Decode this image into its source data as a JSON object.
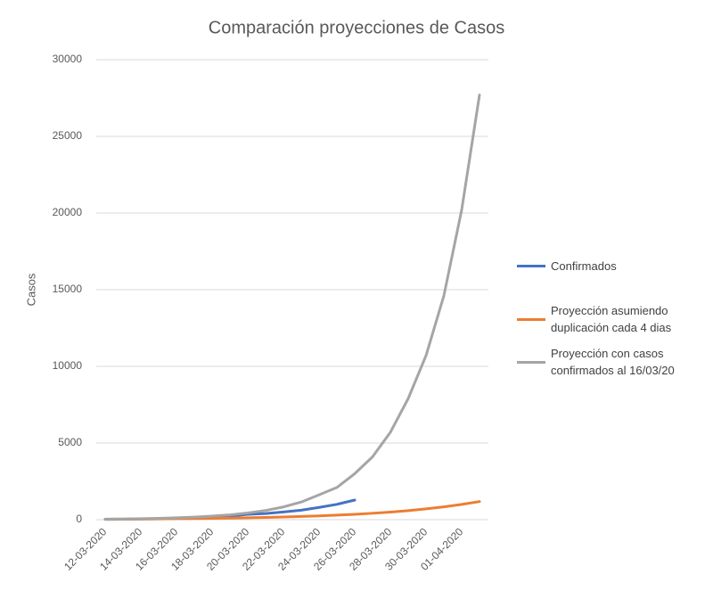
{
  "chart_data": {
    "type": "line",
    "title": "Comparación proyecciones de Casos",
    "y_label": "Casos",
    "categories": [
      "12-03-2020",
      null,
      "14-03-2020",
      null,
      "16-03-2020",
      null,
      "18-03-2020",
      null,
      "20-03-2020",
      null,
      "22-03-2020",
      null,
      "24-03-2020",
      null,
      "26-03-2020",
      null,
      "28-03-2020",
      null,
      "30-03-2020",
      null,
      "01-04-2020",
      null
    ],
    "series": [
      {
        "name": "Confirmados",
        "color": "#4472c4",
        "values": [
          20,
          30,
          40,
          60,
          100,
          150,
          200,
          230,
          350,
          400,
          500,
          620,
          800,
          1000,
          1280,
          null,
          null,
          null,
          null,
          null,
          null,
          null
        ]
      },
      {
        "name": "Proyección asumiendo duplicación cada 4 dias",
        "color": "#ed7d31",
        "values": [
          31,
          37,
          44,
          52,
          62,
          74,
          88,
          105,
          124,
          148,
          176,
          209,
          248,
          295,
          351,
          418,
          497,
          591,
          703,
          836,
          994,
          1182
        ]
      },
      {
        "name": "Proyección con casos confirmados al 16/03/20",
        "color": "#a5a5a5",
        "values": [
          33,
          46,
          63,
          87,
          120,
          165,
          230,
          315,
          435,
          600,
          830,
          1150,
          1620,
          2100,
          3000,
          4100,
          5700,
          7900,
          10700,
          14600,
          20200,
          27700
        ]
      }
    ],
    "ylim": [
      0,
      30000
    ],
    "yticks": [
      0,
      5000,
      10000,
      15000,
      20000,
      25000,
      30000
    ],
    "grid": true
  }
}
